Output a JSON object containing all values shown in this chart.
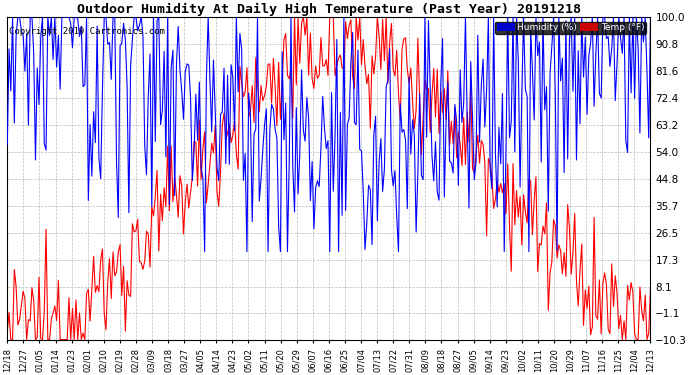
{
  "title": "Outdoor Humidity At Daily High Temperature (Past Year) 20191218",
  "copyright": "Copyright 2019 Cartronics.com",
  "legend_humidity": "Humidity (%)",
  "legend_temp": "Temp (°F)",
  "humidity_color": "#0000FF",
  "temp_color": "#FF0000",
  "legend_humidity_bg": "#0000CC",
  "legend_temp_bg": "#CC0000",
  "ylim_min": -10.3,
  "ylim_max": 100.0,
  "yticks": [
    100.0,
    90.8,
    81.6,
    72.4,
    63.2,
    54.0,
    44.8,
    35.7,
    26.5,
    17.3,
    8.1,
    -1.1,
    -10.3
  ],
  "background_color": "#FFFFFF",
  "plot_bg_color": "#FFFFFF",
  "grid_color": "#BBBBBB",
  "x_labels": [
    "12/18",
    "12/27",
    "01/05",
    "01/14",
    "01/23",
    "02/01",
    "02/10",
    "02/19",
    "02/28",
    "03/09",
    "03/18",
    "03/27",
    "04/05",
    "04/14",
    "04/23",
    "05/02",
    "05/11",
    "05/20",
    "05/29",
    "06/07",
    "06/16",
    "06/25",
    "07/04",
    "07/13",
    "07/22",
    "07/31",
    "08/09",
    "08/18",
    "08/27",
    "09/05",
    "09/14",
    "09/23",
    "10/02",
    "10/11",
    "10/20",
    "10/29",
    "11/07",
    "11/16",
    "11/25",
    "12/04",
    "12/13"
  ],
  "n_days": 366
}
